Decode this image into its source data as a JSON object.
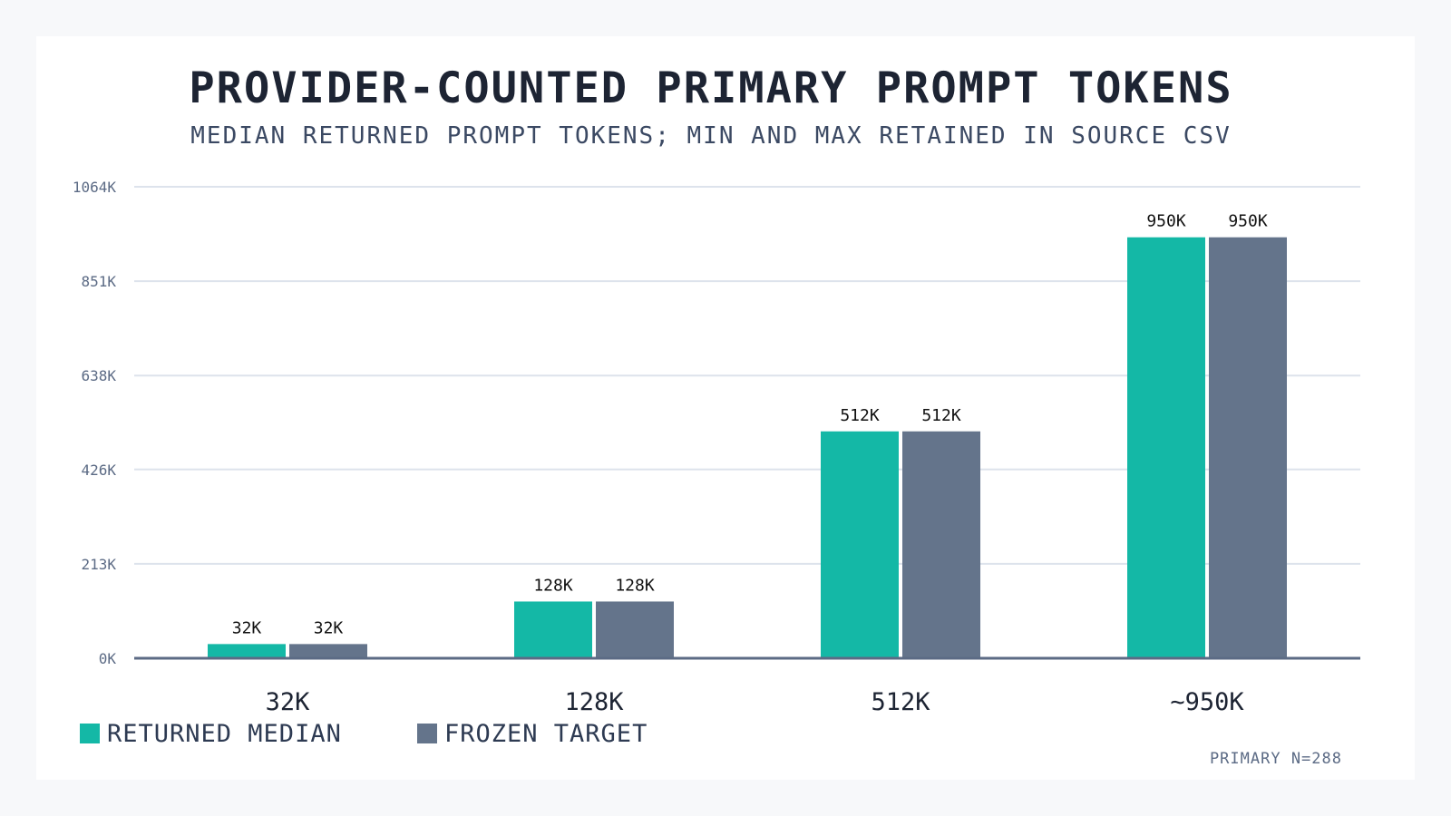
{
  "chart_data": {
    "type": "bar",
    "title": "PROVIDER-COUNTED PRIMARY PROMPT TOKENS",
    "subtitle": "MEDIAN RETURNED PROMPT TOKENS; MIN AND MAX RETAINED IN SOURCE CSV",
    "xlabel": "",
    "ylabel": "",
    "categories": [
      "32K",
      "128K",
      "512K",
      "~950K"
    ],
    "series": [
      {
        "name": "RETURNED MEDIAN",
        "color": "#14b8a6",
        "values": [
          32000,
          128000,
          512000,
          950000
        ],
        "labels": [
          "32K",
          "128K",
          "512K",
          "950K"
        ]
      },
      {
        "name": "FROZEN TARGET",
        "color": "#64748b",
        "values": [
          32000,
          128000,
          512000,
          950000
        ],
        "labels": [
          "32K",
          "128K",
          "512K",
          "950K"
        ]
      }
    ],
    "ylim": [
      0,
      1064000
    ],
    "yticks": [
      0,
      213000,
      426000,
      638000,
      851000,
      1064000
    ],
    "ytick_labels": [
      "0K",
      "213K",
      "426K",
      "638K",
      "851K",
      "1064K"
    ],
    "grid": true,
    "legend_position": "bottom-left",
    "note": "PRIMARY N=288"
  }
}
